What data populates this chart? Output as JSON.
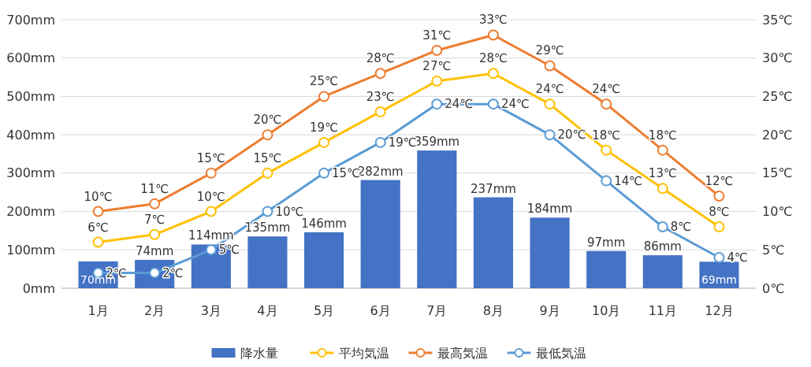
{
  "chart_data": {
    "type": "bar",
    "categories": [
      "1月",
      "2月",
      "3月",
      "4月",
      "5月",
      "6月",
      "7月",
      "8月",
      "9月",
      "10月",
      "11月",
      "12月"
    ],
    "ylim": [
      0,
      700
    ],
    "yticks": [
      {
        "value": 0,
        "label": "0mm"
      },
      {
        "value": 100,
        "label": "100mm"
      },
      {
        "value": 200,
        "label": "200mm"
      },
      {
        "value": 300,
        "label": "300mm"
      },
      {
        "value": 400,
        "label": "400mm"
      },
      {
        "value": 500,
        "label": "500mm"
      },
      {
        "value": 600,
        "label": "600mm"
      },
      {
        "value": 700,
        "label": "700mm"
      }
    ],
    "y2lim": [
      0,
      35
    ],
    "y2ticks": [
      {
        "value": 0,
        "label": "0℃"
      },
      {
        "value": 5,
        "label": "5℃"
      },
      {
        "value": 10,
        "label": "10℃"
      },
      {
        "value": 15,
        "label": "15℃"
      },
      {
        "value": 20,
        "label": "20℃"
      },
      {
        "value": 25,
        "label": "25℃"
      },
      {
        "value": 30,
        "label": "30℃"
      },
      {
        "value": 35,
        "label": "35℃"
      }
    ],
    "grid": "y",
    "legend": "bottom",
    "marker": "circle",
    "series": [
      {
        "name": "降水量",
        "color": "#4472c4",
        "values": [
          70,
          74,
          114,
          135,
          146,
          282,
          359,
          237,
          184,
          97,
          86,
          69
        ],
        "value_labels": [
          "70mm",
          "74mm",
          "114mm",
          "135mm",
          "146mm",
          "282mm",
          "359mm",
          "237mm",
          "184mm",
          "97mm",
          "86mm",
          "69mm"
        ]
      },
      {
        "name": "平均気温",
        "type": "line",
        "axis": "y2",
        "color": "#ffc000",
        "values": [
          6,
          7,
          10,
          15,
          19,
          23,
          27,
          28,
          24,
          18,
          13,
          8
        ],
        "value_labels": [
          "6℃",
          "7℃",
          "10℃",
          "15℃",
          "19℃",
          "23℃",
          "27℃",
          "28℃",
          "24℃",
          "18℃",
          "13℃",
          "8℃"
        ]
      },
      {
        "name": "最高気温",
        "type": "line",
        "axis": "y2",
        "color": "#ed7d31",
        "values": [
          10,
          11,
          15,
          20,
          25,
          28,
          31,
          33,
          29,
          24,
          18,
          12
        ],
        "value_labels": [
          "10℃",
          "11℃",
          "15℃",
          "20℃",
          "25℃",
          "28℃",
          "31℃",
          "33℃",
          "29℃",
          "24℃",
          "18℃",
          "12℃"
        ]
      },
      {
        "name": "最低気温",
        "type": "line",
        "axis": "y2",
        "color": "#5b9bd5",
        "values": [
          2,
          2,
          5,
          10,
          15,
          19,
          24,
          24,
          20,
          14,
          8,
          4
        ],
        "value_labels": [
          "2℃",
          "2℃",
          "5℃",
          "10℃",
          "15℃",
          "19℃",
          "24℃",
          "24℃",
          "20℃",
          "14℃",
          "8℃",
          "4℃"
        ]
      }
    ]
  }
}
